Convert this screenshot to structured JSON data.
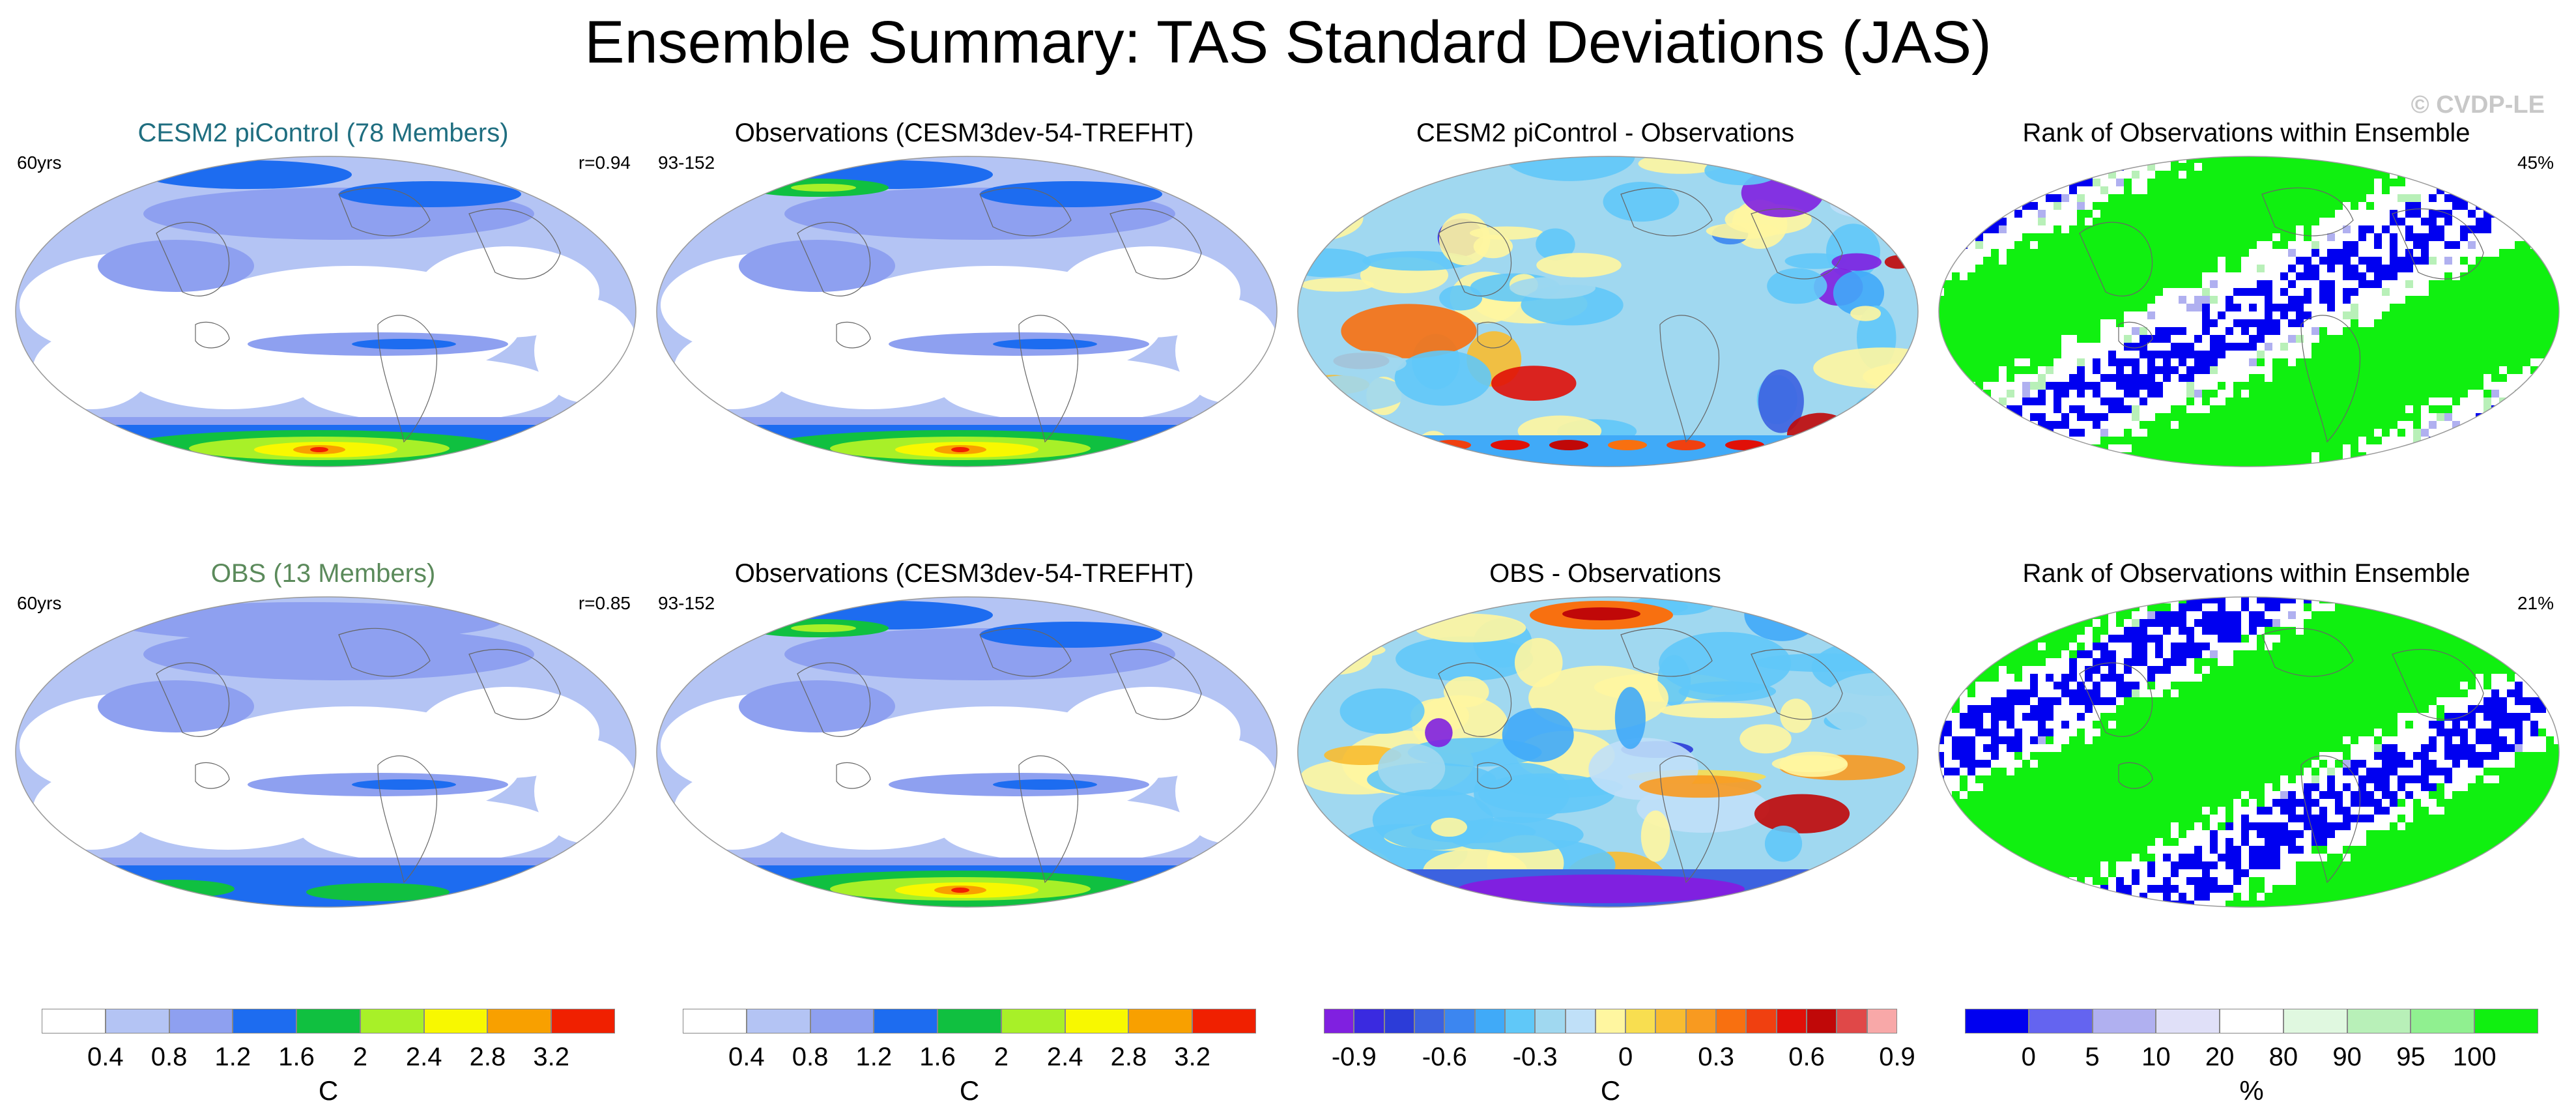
{
  "title": "Ensemble Summary: TAS Standard Deviations (JAS)",
  "watermark": "© CVDP-LE",
  "colors": {
    "sd_scale": [
      "#ffffff",
      "#b4c4f4",
      "#8ea0f0",
      "#1d6cf0",
      "#10c040",
      "#a8f028",
      "#f8f800",
      "#f8a000",
      "#f02000"
    ],
    "diff_scale": [
      "#8020e0",
      "#3a2ae0",
      "#2c3cd8",
      "#3c62e0",
      "#3c86f0",
      "#40aaf8",
      "#60c8f8",
      "#a0d8f0",
      "#c0e0f8",
      "#fff6a0",
      "#f8de50",
      "#f8bc30",
      "#f89a20",
      "#f87010",
      "#f04010",
      "#e01008",
      "#c00808",
      "#e04848",
      "#f8a8a8"
    ],
    "rank_scale": [
      "#0000f0",
      "#6464f0",
      "#b0b0f0",
      "#e0e0f8",
      "#ffffff",
      "#e0f8e0",
      "#b8f0b8",
      "#90f090",
      "#10f010"
    ],
    "ocean_blue": "#b4c4f4",
    "land_line": "#666666"
  },
  "panels": [
    {
      "title": "CESM2 piControl (78 Members)",
      "title_color": "#1f6e80",
      "left_note": "60yrs",
      "right_note": "r=0.94",
      "kind": "sd"
    },
    {
      "title": "Observations (CESM3dev-54-TREFHT)",
      "title_color": "#000000",
      "left_note": "93-152",
      "right_note": "",
      "kind": "sd_obs"
    },
    {
      "title": "CESM2 piControl - Observations",
      "title_color": "#000000",
      "left_note": "",
      "right_note": "",
      "kind": "diff"
    },
    {
      "title": "Rank of Observations within Ensemble",
      "title_color": "#000000",
      "left_note": "",
      "right_note": "45%",
      "kind": "rank"
    },
    {
      "title": "OBS (13 Members)",
      "title_color": "#5b8a5b",
      "left_note": "60yrs",
      "right_note": "r=0.85",
      "kind": "sd2"
    },
    {
      "title": "Observations (CESM3dev-54-TREFHT)",
      "title_color": "#000000",
      "left_note": "93-152",
      "right_note": "",
      "kind": "sd_obs"
    },
    {
      "title": "OBS - Observations",
      "title_color": "#000000",
      "left_note": "",
      "right_note": "",
      "kind": "diff2"
    },
    {
      "title": "Rank of Observations within Ensemble",
      "title_color": "#000000",
      "left_note": "",
      "right_note": "21%",
      "kind": "rank2"
    }
  ],
  "chart_data": [
    {
      "type": "colorbar",
      "name": "sd_colorbar_1",
      "unit": "C",
      "levels": [
        0.4,
        0.8,
        1.2,
        1.6,
        2,
        2.4,
        2.8,
        3.2
      ],
      "tick_labels": [
        "0.4",
        "0.8",
        "1.2",
        "1.6",
        "2",
        "2.4",
        "2.8",
        "3.2"
      ]
    },
    {
      "type": "colorbar",
      "name": "sd_colorbar_2",
      "unit": "C",
      "levels": [
        0.4,
        0.8,
        1.2,
        1.6,
        2,
        2.4,
        2.8,
        3.2
      ],
      "tick_labels": [
        "0.4",
        "0.8",
        "1.2",
        "1.6",
        "2",
        "2.4",
        "2.8",
        "3.2"
      ]
    },
    {
      "type": "colorbar",
      "name": "diff_colorbar",
      "unit": "C",
      "levels": [
        -0.9,
        -0.8,
        -0.7,
        -0.6,
        -0.5,
        -0.4,
        -0.3,
        -0.2,
        -0.1,
        0,
        0.1,
        0.2,
        0.3,
        0.4,
        0.5,
        0.6,
        0.7,
        0.8,
        0.9
      ],
      "tick_labels": [
        "-0.9",
        "-0.6",
        "-0.3",
        "0",
        "0.3",
        "0.6",
        "0.9"
      ],
      "tick_values": [
        -0.9,
        -0.6,
        -0.3,
        0,
        0.3,
        0.6,
        0.9
      ]
    },
    {
      "type": "colorbar",
      "name": "rank_colorbar",
      "unit": "%",
      "levels": [
        0,
        5,
        10,
        20,
        80,
        90,
        95,
        100
      ],
      "tick_labels": [
        "0",
        "5",
        "10",
        "20",
        "80",
        "90",
        "95",
        "100"
      ]
    }
  ]
}
